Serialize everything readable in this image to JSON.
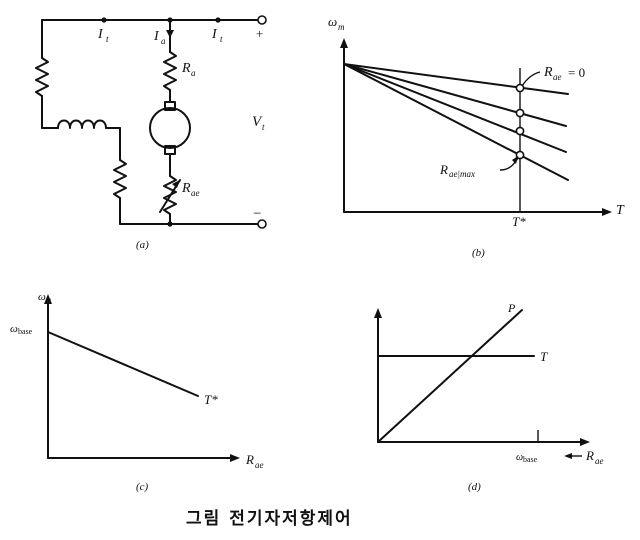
{
  "panel_a": {
    "caption": "(a)",
    "labels": {
      "it_left": "I",
      "it_left_sub": "t",
      "ia": "I",
      "ia_sub": "a",
      "it_right": "I",
      "it_right_sub": "t",
      "plus": "+",
      "minus": "−",
      "ra": "R",
      "ra_sub": "a",
      "vt": "V",
      "vt_sub": "t",
      "rae": "R",
      "rae_sub": "ae"
    }
  },
  "panel_b": {
    "caption": "(b)",
    "y_axis": "ω",
    "y_axis_sub": "m",
    "x_axis": "T",
    "marker": "T*",
    "rae_zero": "R",
    "rae_zero_sub": "ae",
    "rae_zero_eq": "= 0",
    "rae_max": "R",
    "rae_max_sub": "ae|max"
  },
  "panel_c": {
    "caption": "(c)",
    "y_axis": "ω",
    "y_axis_sub": "m",
    "y_tick": "ω",
    "y_tick_sub": "base",
    "x_axis": "R",
    "x_axis_sub": "ae",
    "line_label": "T*"
  },
  "panel_d": {
    "caption": "(d)",
    "p_label": "P",
    "t_label": "T",
    "x_tick": "ω",
    "x_tick_sub": "base",
    "x_axis": "R",
    "x_axis_sub": "ae"
  },
  "figure_caption": "그림 전기자저항제어"
}
